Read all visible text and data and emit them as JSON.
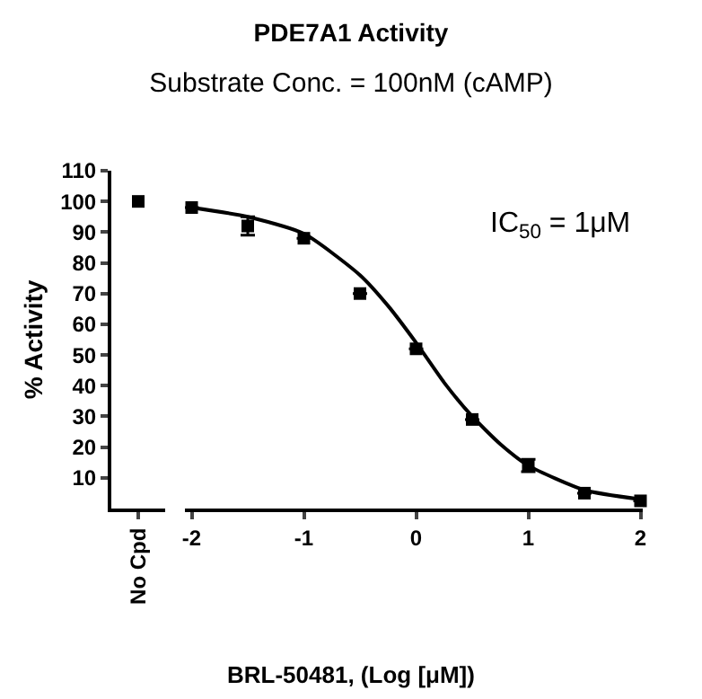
{
  "chart_data": [
    {
      "type": "scatter",
      "ylabel": "% Activity",
      "categories": [
        "No Cpd"
      ],
      "values": [
        100
      ],
      "color": "#000000",
      "marker": "square",
      "ylim": [
        0,
        110
      ],
      "yticks": [
        10,
        20,
        30,
        40,
        50,
        60,
        70,
        80,
        90,
        100,
        110
      ]
    },
    {
      "type": "scatter",
      "title": "PDE7A1 Activity",
      "subtitle": "Substrate Conc. = 100nM (cAMP)",
      "xlabel": "BRL-50481, (Log [μM])",
      "annotations": [
        "IC$_{50}$ = 1μM"
      ],
      "xlim": [
        -2.06,
        2.02
      ],
      "xticks": [
        -2,
        -1,
        0,
        1,
        2
      ],
      "ylim": [
        0,
        110
      ],
      "tick_labels": "x",
      "series": [
        {
          "type": "scatter",
          "color": "#000000",
          "marker": "square",
          "x": [
            -2,
            -1.5,
            -1,
            -0.5,
            0,
            0.5,
            1,
            1.5,
            2
          ],
          "values": [
            98,
            92,
            88,
            70,
            52,
            29,
            14,
            5,
            2.5
          ],
          "errors": [
            null,
            3,
            null,
            null,
            null,
            null,
            2,
            null,
            null
          ]
        },
        {
          "type": "line",
          "color": "#000000",
          "marker": "none",
          "x": [
            -2,
            -1.5,
            -1,
            -0.5,
            -0.25,
            0,
            0.25,
            0.5,
            0.75,
            1,
            1.5,
            2
          ],
          "values": [
            98,
            95,
            89.5,
            76,
            66,
            54,
            41,
            30,
            21,
            14,
            6,
            3
          ]
        }
      ]
    }
  ]
}
